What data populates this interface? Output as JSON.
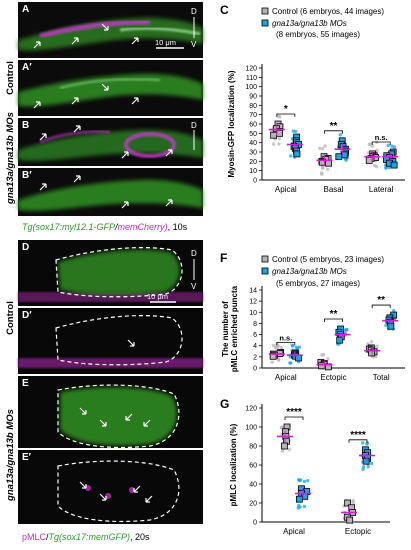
{
  "panels": {
    "A": "A",
    "A2": "A′",
    "B": "B",
    "B2": "B′",
    "C": "C",
    "D": "D",
    "D2": "D′",
    "E": "E",
    "E2": "E′",
    "F": "F",
    "G": "G"
  },
  "micro": {
    "orient_d": "D",
    "orient_v": "V",
    "scale_top": "10 μm",
    "scale_mid": "10 μm",
    "side_control_top": "Control",
    "side_mo_top": "gna13a/gna13b MOs",
    "side_control_bot": "Control",
    "side_mo_bot": "gna13a/gna13b MOs",
    "caption_top": {
      "green": "Tg(sox17:myl12.1-GFP",
      "slash": "/",
      "magenta": "memCherry)",
      "time": ", 10s"
    },
    "caption_bot": {
      "magenta": "pMLC",
      "slash": "/",
      "green": "Tg(sox17:memGFP)",
      "time": ", 20s"
    }
  },
  "chart_data": [
    {
      "panel": "C",
      "type": "scatter",
      "ylabel": "Myosin-GFP localization (%)",
      "ylim": [
        0,
        120
      ],
      "yticks": [
        "0",
        "10",
        "20",
        "30",
        "40",
        "50",
        "60",
        "70",
        "80",
        "90",
        "100",
        "110",
        "120"
      ],
      "categories": [
        "Apical",
        "Basal",
        "Lateral"
      ],
      "legend": [
        "Control (6 embryos, 44 images)",
        "gna13a/gna13b MOs",
        "(8 embryos, 55 images)"
      ],
      "significance": [
        "*",
        "**",
        "n.s."
      ],
      "series": [
        {
          "name": "Control",
          "color": "#b5b5b5",
          "embryo_means": [
            [
              60,
              57,
              55,
              52,
              50,
              48
            ],
            [
              25,
              23,
              22,
              20,
              19,
              18
            ],
            [
              28,
              26,
              25,
              24,
              23,
              21
            ]
          ],
          "mean": [
            54,
            21,
            25
          ]
        },
        {
          "name": "gna13a/gna13b MOs",
          "color": "#1aa3df",
          "embryo_means": [
            [
              46,
              42,
              40,
              38,
              36,
              34,
              31,
              28
            ],
            [
              42,
              38,
              36,
              33,
              31,
              29,
              27,
              25
            ],
            [
              30,
              28,
              26,
              24,
              22,
              20,
              18,
              16
            ]
          ],
          "mean": [
            38,
            33,
            25
          ]
        }
      ]
    },
    {
      "panel": "F",
      "type": "scatter",
      "ylabel": "The number of pMLC enriched puncta",
      "ylim": [
        0,
        14
      ],
      "yticks": [
        "0",
        "2",
        "4",
        "6",
        "8",
        "10",
        "12",
        "14"
      ],
      "categories": [
        "Apical",
        "Ectopic",
        "Total"
      ],
      "legend": [
        "Control (5 embryos, 23 images)",
        "gna13a/gna13b MOs",
        "(5 embryos, 27 images)"
      ],
      "significance": [
        "n.s.",
        "**",
        "**"
      ],
      "series": [
        {
          "name": "Control",
          "color": "#b5b5b5",
          "embryo_means": [
            [
              2.8,
              2.6,
              2.5,
              2.3,
              2.1
            ],
            [
              1.0,
              0.8,
              0.6,
              0.4,
              0.2
            ],
            [
              3.6,
              3.4,
              3.2,
              2.9,
              2.7
            ]
          ],
          "mean": [
            2.5,
            0.6,
            3.1
          ]
        },
        {
          "name": "gna13a/gna13b MOs",
          "color": "#1aa3df",
          "embryo_means": [
            [
              2.7,
              2.5,
              2.3,
              2.1,
              1.8
            ],
            [
              7.0,
              6.4,
              6.0,
              5.6,
              5.0
            ],
            [
              9.5,
              9.0,
              8.6,
              8.2,
              7.5
            ]
          ],
          "mean": [
            2.3,
            6.0,
            8.5
          ]
        }
      ]
    },
    {
      "panel": "G",
      "type": "scatter",
      "ylabel": "pMLC localization (%)",
      "ylim": [
        0,
        120
      ],
      "yticks": [
        "0",
        "20",
        "40",
        "60",
        "80",
        "100",
        "120"
      ],
      "categories": [
        "Apical",
        "Ectopic"
      ],
      "significance": [
        "****",
        "****"
      ],
      "series": [
        {
          "name": "Control",
          "color": "#b5b5b5",
          "embryo_means": [
            [
              100,
              95,
              90,
              85,
              80
            ],
            [
              20,
              15,
              10,
              5,
              2
            ]
          ],
          "mean": [
            90,
            10
          ]
        },
        {
          "name": "gna13a/gna13b MOs",
          "color": "#1aa3df",
          "embryo_means": [
            [
              35,
              32,
              30,
              27,
              24
            ],
            [
              76,
              73,
              70,
              67,
              64
            ]
          ],
          "mean": [
            30,
            70
          ]
        }
      ]
    }
  ]
}
